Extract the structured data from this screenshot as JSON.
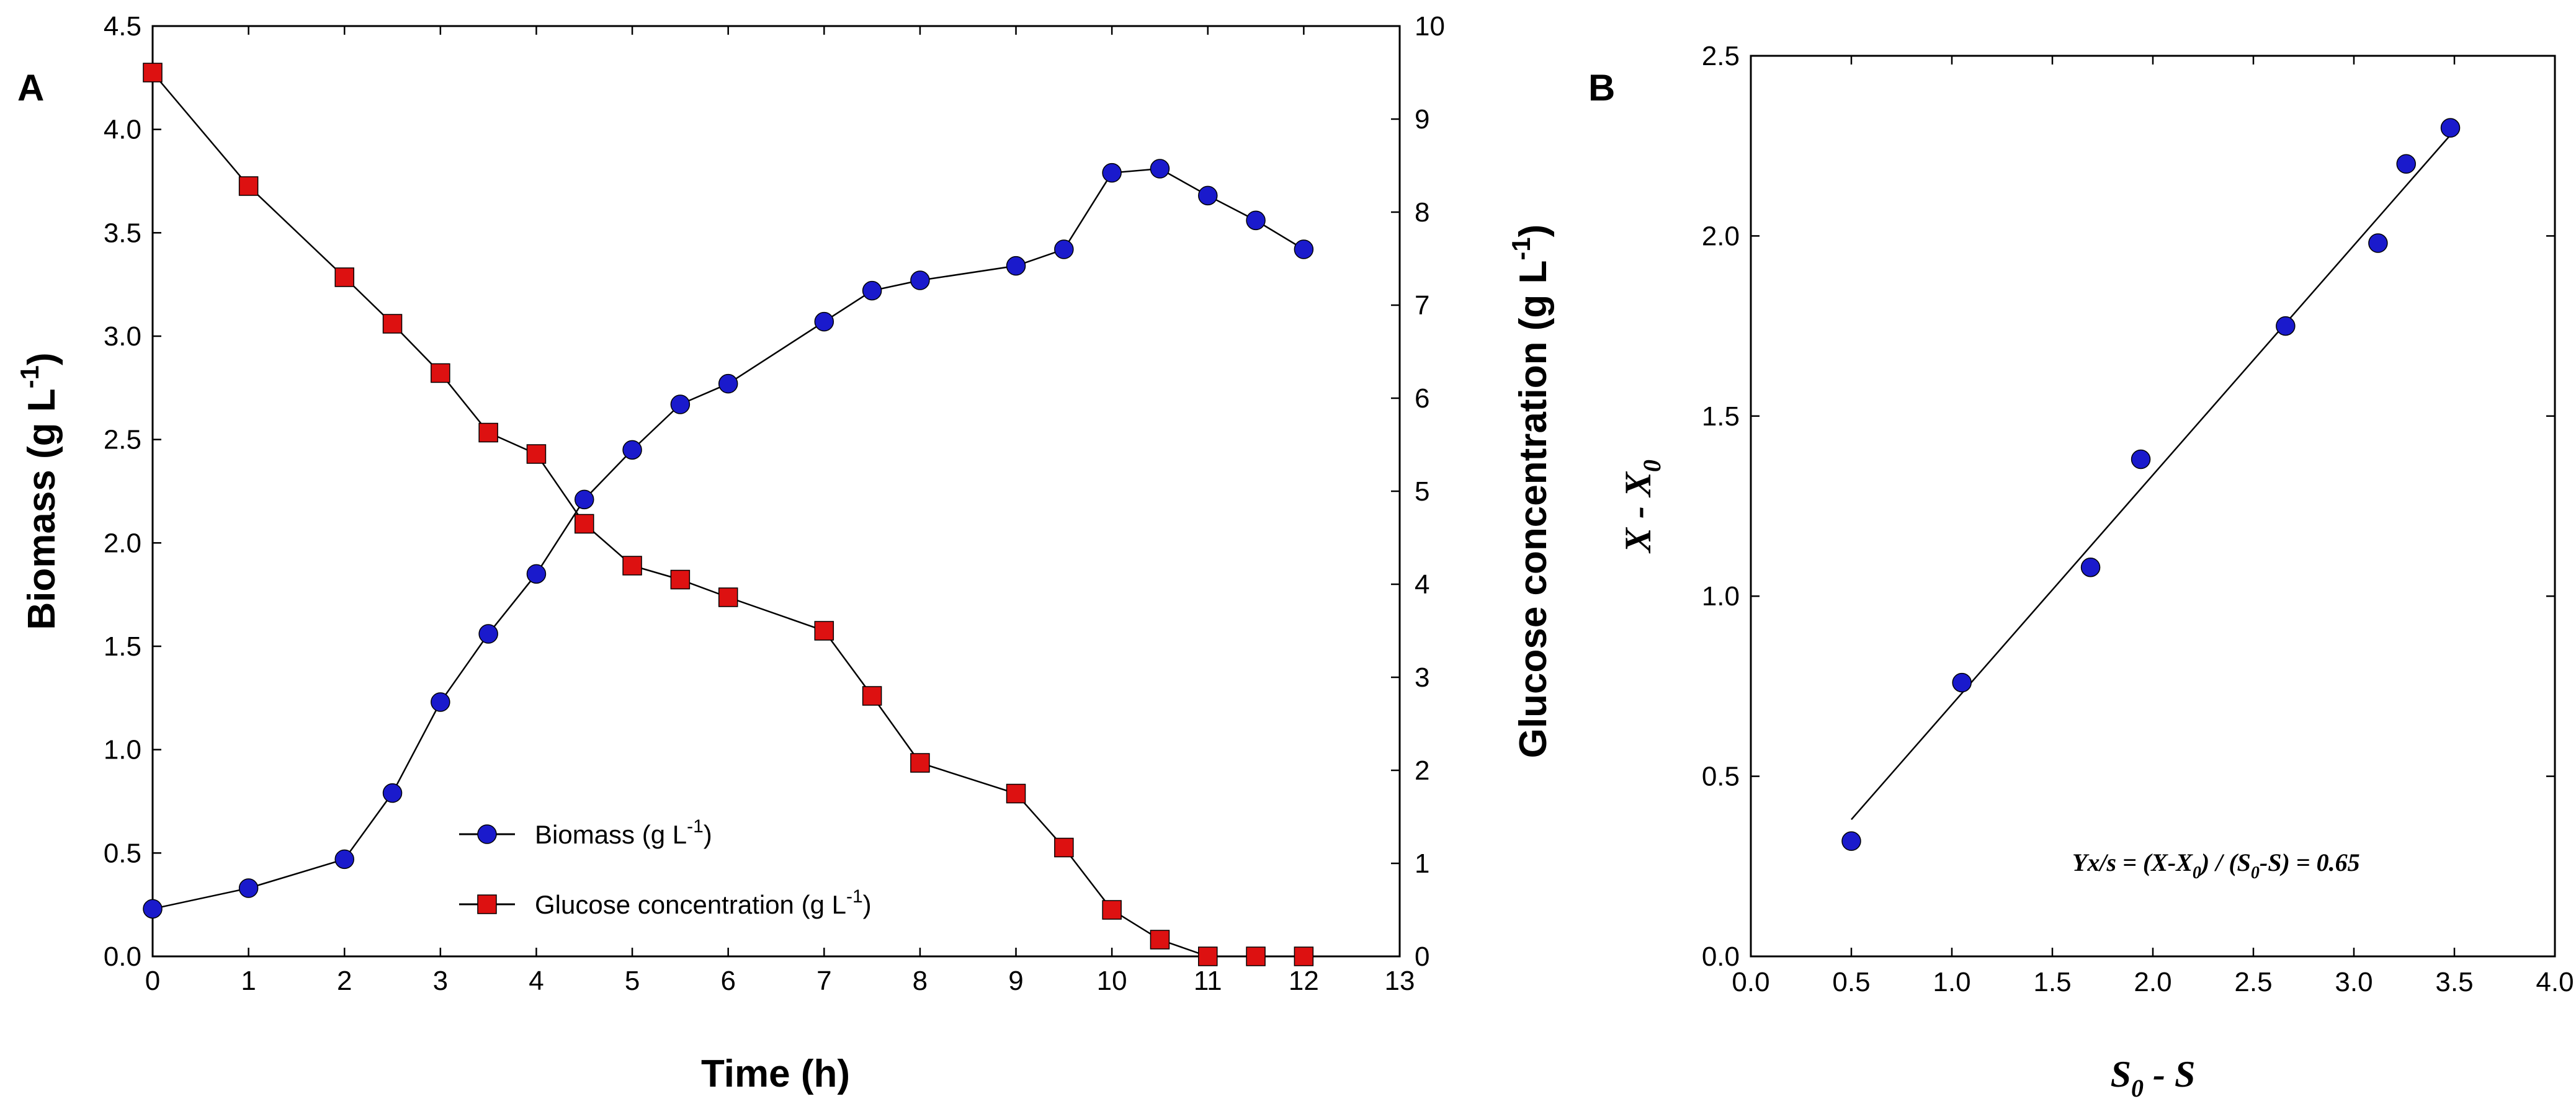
{
  "chart_data": [
    {
      "panel": "A",
      "type": "line",
      "xlabel": "Time (h)",
      "ylabel_main": "Biomass (g L",
      "ylabel_sup": "-1",
      "ylabel_end": ")",
      "ylabel2_main": "Glucose concentration (g L",
      "ylabel2_sup": "-1",
      "ylabel2_end": ")",
      "xlim": [
        0,
        13
      ],
      "ylim": [
        0,
        4.5
      ],
      "y2lim": [
        0,
        10
      ],
      "xticks": [
        0,
        1,
        2,
        3,
        4,
        5,
        6,
        7,
        8,
        9,
        10,
        11,
        12,
        13
      ],
      "yticks": [
        "0.0",
        "0.5",
        "1.0",
        "1.5",
        "2.0",
        "2.5",
        "3.0",
        "3.5",
        "4.0",
        "4.5"
      ],
      "y2ticks": [
        "0",
        "1",
        "2",
        "3",
        "4",
        "5",
        "6",
        "7",
        "8",
        "9",
        "10"
      ],
      "series": [
        {
          "name": "Biomass (g L",
          "name_sup": "-1",
          "name_end": ")",
          "axis": "left",
          "marker": "circle",
          "color": "#1a1acc",
          "x": [
            0,
            1,
            2,
            2.5,
            3,
            3.5,
            4,
            4.5,
            5,
            5.5,
            6,
            7,
            7.5,
            8,
            9,
            9.5,
            10,
            10.5,
            11,
            11.5,
            12
          ],
          "values": [
            0.23,
            0.33,
            0.47,
            0.79,
            1.23,
            1.56,
            1.85,
            2.21,
            2.45,
            2.67,
            2.77,
            3.07,
            3.22,
            3.27,
            3.34,
            3.42,
            3.79,
            3.81,
            3.68,
            3.56,
            3.42
          ]
        },
        {
          "name": "Glucose concentration (g L",
          "name_sup": "-1",
          "name_end": ")",
          "axis": "right",
          "marker": "square",
          "color": "#dd1111",
          "x": [
            0,
            1,
            2,
            2.5,
            3,
            3.5,
            4,
            4.5,
            5,
            5.5,
            6,
            7,
            7.5,
            8,
            9,
            9.5,
            10,
            10.5,
            11,
            11.5,
            12
          ],
          "values": [
            9.5,
            8.28,
            7.3,
            6.8,
            6.27,
            5.63,
            5.4,
            4.65,
            4.2,
            4.05,
            3.86,
            3.5,
            2.8,
            2.08,
            1.75,
            1.17,
            0.5,
            0.18,
            0,
            0,
            0
          ]
        }
      ]
    },
    {
      "panel": "B",
      "type": "scatter",
      "xlabel_main": "S",
      "xlabel_sub": "0",
      "xlabel_end": " - S",
      "ylabel_main": "X - X",
      "ylabel_sub": "0",
      "xlim": [
        0,
        4
      ],
      "ylim": [
        0,
        2.5
      ],
      "xticks": [
        "0.0",
        "0.5",
        "1.0",
        "1.5",
        "2.0",
        "2.5",
        "3.0",
        "3.5",
        "4.0"
      ],
      "yticks": [
        "0.0",
        "0.5",
        "1.0",
        "1.5",
        "2.0",
        "2.5"
      ],
      "points_color": "#1a1acc",
      "x": [
        0.5,
        1.05,
        1.69,
        1.94,
        2.66,
        3.12,
        3.26,
        3.48
      ],
      "values": [
        0.32,
        0.76,
        1.08,
        1.38,
        1.75,
        1.98,
        2.2,
        2.3
      ],
      "fit_line": {
        "x": [
          0.5,
          3.48
        ],
        "values": [
          0.38,
          2.28
        ]
      },
      "annotation": {
        "t1": "Yx/s = (X-X",
        "t1_sub": "0",
        "t2": ") / (S",
        "t2_sub": "0",
        "t3": "-S) = 0.65"
      }
    }
  ]
}
